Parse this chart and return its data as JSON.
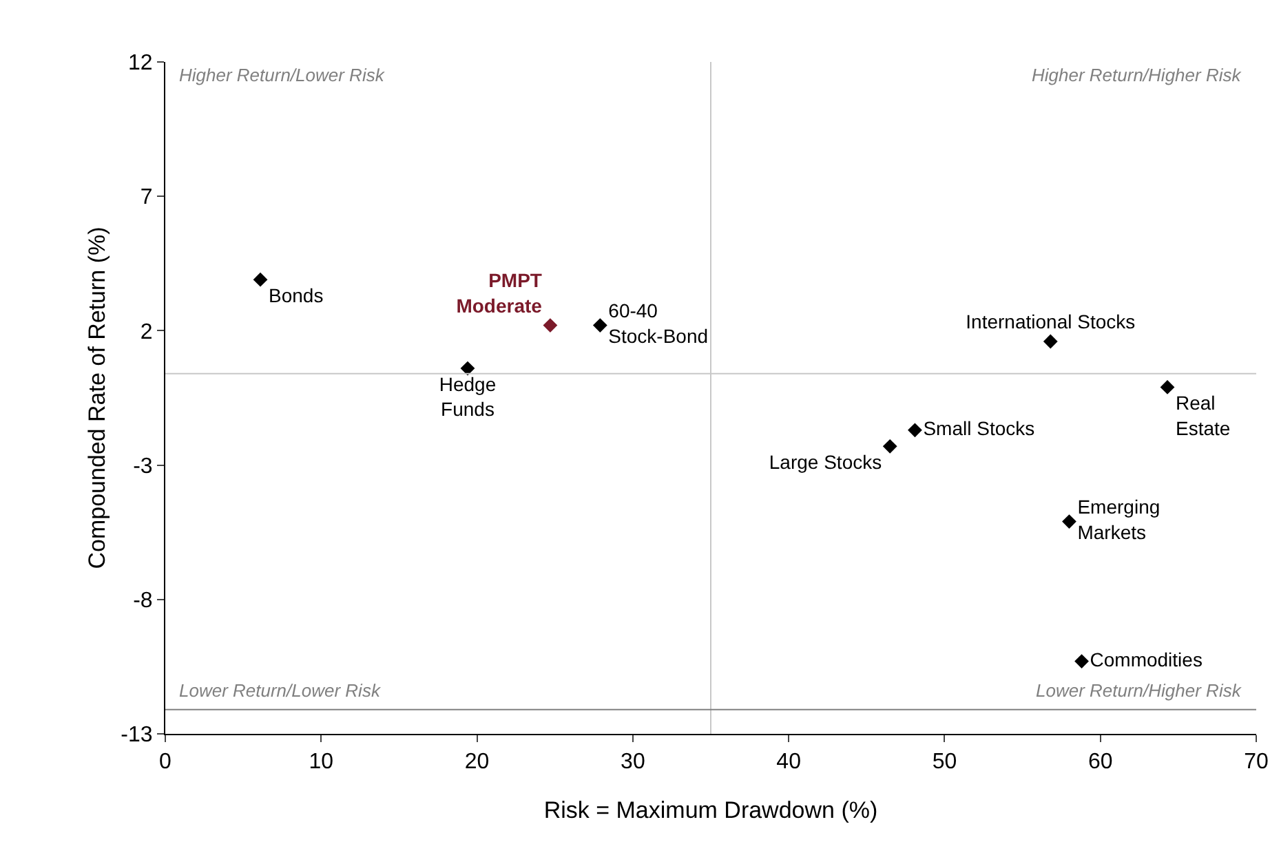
{
  "chart_data": {
    "type": "scatter",
    "xlabel": "Risk = Maximum Drawdown (%)",
    "ylabel": "Compounded Rate of Return (%)",
    "xlim": [
      0,
      70
    ],
    "xticks": [
      0,
      10,
      20,
      30,
      40,
      50,
      60,
      70
    ],
    "ylim": [
      -13,
      12
    ],
    "yticks": [
      -13,
      -8,
      -3,
      2,
      7,
      12
    ],
    "grid": false,
    "legend": false,
    "marker": "diamond",
    "series": [
      {
        "name": "Bonds",
        "color": "#000000",
        "x": [
          6.1
        ],
        "values": [
          3.9
        ]
      },
      {
        "name": "PMPT\nModerate",
        "color": "#7b1a2a",
        "x": [
          24.7
        ],
        "values": [
          2.2
        ]
      },
      {
        "name": "60-40\nStock-Bond",
        "color": "#000000",
        "x": [
          27.9
        ],
        "values": [
          2.2
        ]
      },
      {
        "name": "Hedge\nFunds",
        "color": "#000000",
        "x": [
          19.4
        ],
        "values": [
          0.6
        ]
      },
      {
        "name": "International Stocks",
        "color": "#000000",
        "x": [
          56.8
        ],
        "values": [
          1.6
        ]
      },
      {
        "name": "Real\nEstate",
        "color": "#000000",
        "x": [
          64.3
        ],
        "values": [
          -0.1
        ]
      },
      {
        "name": "Small Stocks",
        "color": "#000000",
        "x": [
          48.1
        ],
        "values": [
          -1.7
        ]
      },
      {
        "name": "Large Stocks",
        "color": "#000000",
        "x": [
          46.5
        ],
        "values": [
          -2.3
        ]
      },
      {
        "name": "Emerging\nMarkets",
        "color": "#000000",
        "x": [
          58.0
        ],
        "values": [
          -5.1
        ]
      },
      {
        "name": "Commodities",
        "color": "#000000",
        "x": [
          58.8
        ],
        "values": [
          -10.3
        ]
      }
    ],
    "ref_lines": [
      {
        "axis": "x",
        "value": 35,
        "color": "#c8c8c8"
      },
      {
        "axis": "y",
        "value": 0.4,
        "color": "#c8c8c8"
      },
      {
        "axis": "y",
        "value": -12.1,
        "color": "#808080"
      }
    ],
    "annotations": [
      "Higher Return/Lower Risk",
      "Higher Return/Higher Risk",
      "Lower Return/Lower Risk",
      "Lower Return/Higher Risk"
    ]
  }
}
